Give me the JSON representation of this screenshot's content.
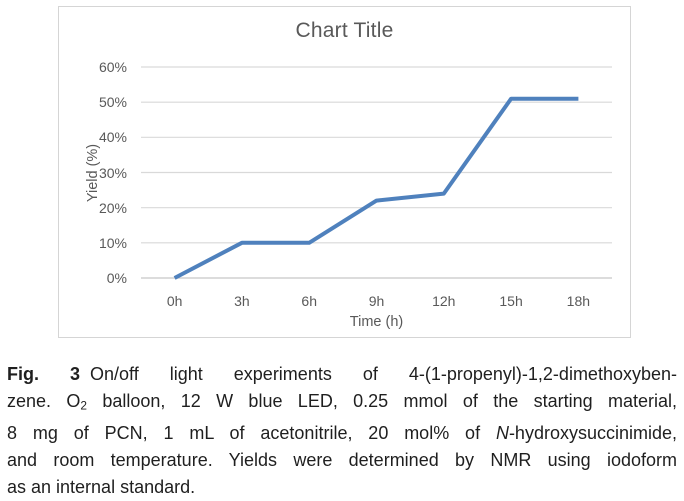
{
  "chart_data": {
    "type": "line",
    "title": "Chart Title",
    "xlabel": "Time (h)",
    "ylabel": "Yield (%)",
    "categories": [
      "0h",
      "3h",
      "6h",
      "9h",
      "12h",
      "15h",
      "18h"
    ],
    "series": [
      {
        "name": "Yield",
        "values": [
          0,
          10,
          10,
          22,
          24,
          51,
          51
        ]
      }
    ],
    "ylim": [
      0,
      60
    ],
    "ytick_step": 10,
    "ytick_labels": [
      "0%",
      "10%",
      "20%",
      "30%",
      "40%",
      "50%",
      "60%"
    ],
    "grid": true,
    "legend": "none",
    "line_color": "#4f81bd",
    "gridline_color": "#d9d9d9",
    "axis_line_color": "#c7c7c7",
    "text_color": "#595959"
  },
  "caption": {
    "figure_label": "Fig. 3",
    "full_text": "Fig. 3 On/off light experiments of 4-(1-propenyl)-1,2-dimethoxybenzene. O2 balloon, 12 W blue LED, 0.25 mmol of the starting material, 8 mg of PCN, 1 mL of acetonitrile, 20 mol% of N-hydroxysuccinimide, and room temperature. Yields were determined by NMR using iodoform as an internal standard.",
    "lines": [
      {
        "align": "justify",
        "segments": [
          {
            "style": "bold",
            "text": "Fig. 3"
          },
          {
            "style": "normal",
            "text": "On/off light experiments of 4-(1-propenyl)-1,2-dimethoxyben-"
          }
        ]
      },
      {
        "align": "justify",
        "segments": [
          {
            "style": "normal",
            "text": "zene. O"
          },
          {
            "style": "sub",
            "text": "2"
          },
          {
            "style": "normal",
            "text": " balloon, 12 W blue LED, 0.25 mmol of the starting material,"
          }
        ]
      },
      {
        "align": "justify",
        "segments": [
          {
            "style": "normal",
            "text": "8 mg of PCN, 1 mL of acetonitrile, 20 mol% of "
          },
          {
            "style": "italic",
            "text": "N"
          },
          {
            "style": "normal",
            "text": "-hydroxysuccinimide,"
          }
        ]
      },
      {
        "align": "justify",
        "segments": [
          {
            "style": "normal",
            "text": "and room temperature. Yields were determined by NMR using iodoform"
          }
        ]
      },
      {
        "align": "left",
        "segments": [
          {
            "style": "normal",
            "text": "as an internal standard."
          }
        ]
      }
    ]
  }
}
